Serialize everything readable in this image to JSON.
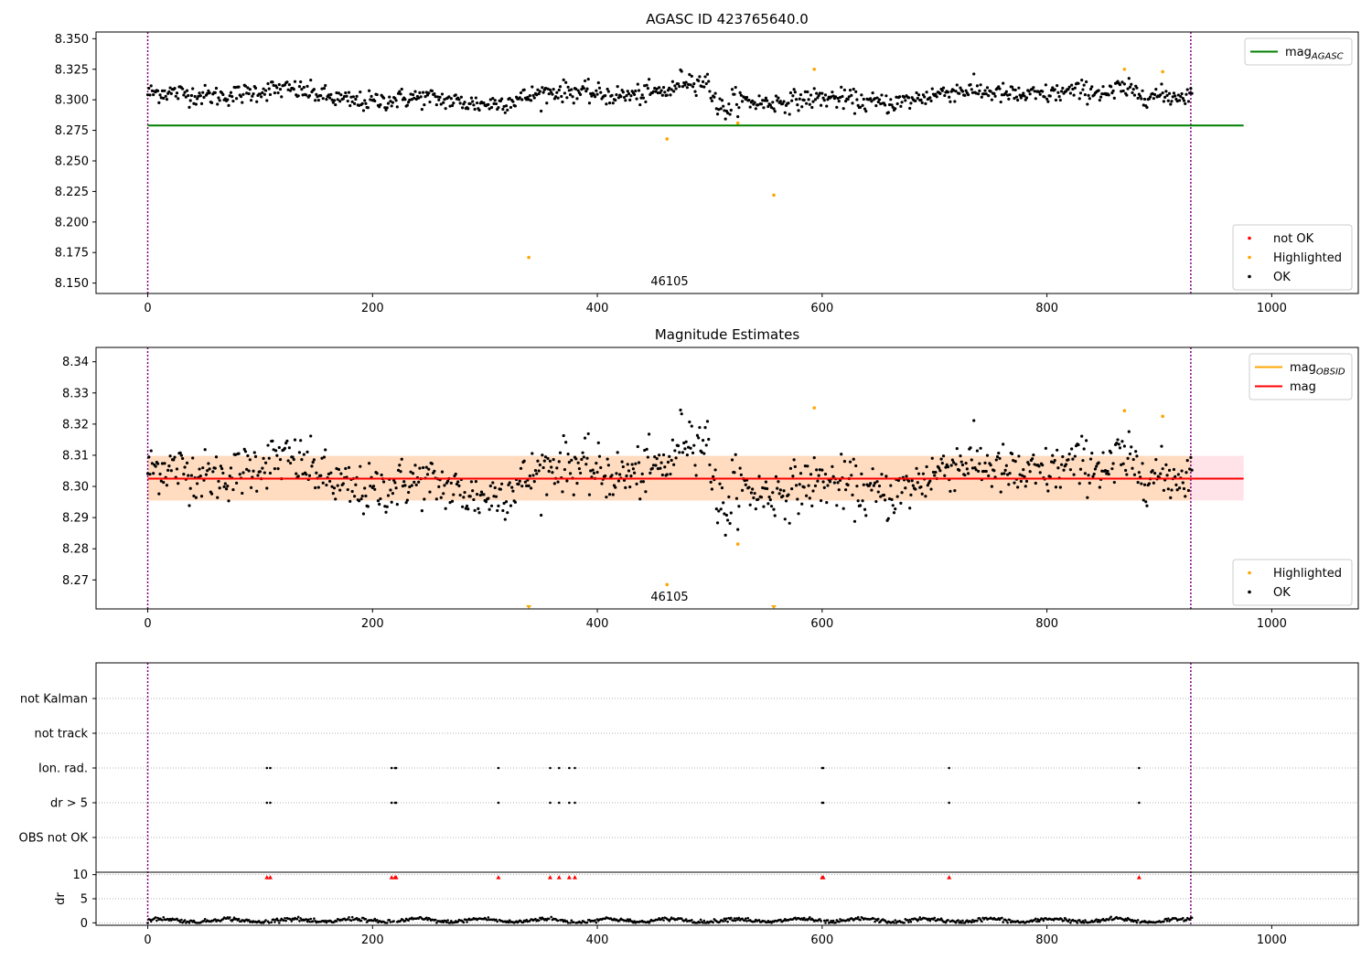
{
  "figure": {
    "background": "#ffffff"
  },
  "colors": {
    "ok": "#000000",
    "highlighted": "#ffa500",
    "not_ok": "#ff0000",
    "mag_agasc": "#008000",
    "mag_obsid": "#ffa500",
    "mag": "#ff0000",
    "band_outer": "#ffc0cb",
    "band_inner": "#ffdab9",
    "vline": "#800080"
  },
  "chart_data": [
    {
      "type": "scatter",
      "title": "AGASC ID 423765640.0",
      "xlim": [
        -46,
        1077
      ],
      "ylim": [
        8.1415,
        8.3555
      ],
      "xticks": [
        0,
        200,
        400,
        600,
        800,
        1000
      ],
      "yticks": [
        8.15,
        8.175,
        8.2,
        8.225,
        8.25,
        8.275,
        8.3,
        8.325,
        8.35
      ],
      "ytick_labels": [
        "8.150",
        "8.175",
        "8.200",
        "8.225",
        "8.250",
        "8.275",
        "8.300",
        "8.325",
        "8.350"
      ],
      "obsid_label": "46105",
      "obsid_boundaries": [
        0,
        928
      ],
      "hline": {
        "name": "mag_AGASC",
        "y": 8.279,
        "x": [
          0,
          975
        ]
      },
      "legend_upper": [
        {
          "label": "mag",
          "sub": "AGASC",
          "kind": "line",
          "color_key": "mag_agasc"
        }
      ],
      "legend_lower": [
        {
          "label": "not OK",
          "kind": "dot",
          "color_key": "not_ok"
        },
        {
          "label": "Highlighted",
          "kind": "dot",
          "color_key": "highlighted"
        },
        {
          "label": "OK",
          "kind": "dot",
          "color_key": "ok"
        }
      ],
      "legend_placement": {
        "line": "upper right",
        "points": "lower right"
      },
      "highlighted": [
        [
          339,
          8.171
        ],
        [
          462,
          8.268
        ],
        [
          525,
          8.281
        ],
        [
          557,
          8.222
        ],
        [
          593,
          8.325
        ],
        [
          869,
          8.325
        ],
        [
          903,
          8.323
        ]
      ],
      "ok_series": {
        "n": 930,
        "mean": 8.3025,
        "spread": 0.0075
      }
    },
    {
      "type": "scatter",
      "title": "Magnitude Estimates",
      "xlim": [
        -46,
        1077
      ],
      "ylim": [
        8.2607,
        8.3446
      ],
      "xticks": [
        0,
        200,
        400,
        600,
        800,
        1000
      ],
      "yticks": [
        8.27,
        8.28,
        8.29,
        8.3,
        8.31,
        8.32,
        8.33,
        8.34
      ],
      "ytick_labels": [
        "8.27",
        "8.28",
        "8.29",
        "8.30",
        "8.31",
        "8.32",
        "8.33",
        "8.34"
      ],
      "obsid_label": "46105",
      "obsid_boundaries": [
        0,
        928
      ],
      "mag": {
        "y": 8.3025,
        "band_low": 8.2955,
        "band_high": 8.3098,
        "x": [
          0,
          975
        ]
      },
      "mag_obsid": {
        "y": 8.3025,
        "x": [
          0,
          928
        ]
      },
      "legend_upper": [
        {
          "label": "mag",
          "sub": "OBSID",
          "kind": "line",
          "color_key": "mag_obsid"
        },
        {
          "label": "mag",
          "sub": "",
          "kind": "line",
          "color_key": "mag"
        }
      ],
      "legend_lower": [
        {
          "label": "Highlighted",
          "kind": "dot",
          "color_key": "highlighted"
        },
        {
          "label": "OK",
          "kind": "dot",
          "color_key": "ok"
        }
      ],
      "legend_placement": {
        "line": "upper right",
        "points": "lower right"
      },
      "highlighted": [
        [
          462,
          8.2685
        ],
        [
          525,
          8.2815
        ],
        [
          593,
          8.3252
        ],
        [
          869,
          8.3243
        ],
        [
          903,
          8.3225
        ]
      ],
      "off_scale_low": [
        [
          339,
          8.2607
        ],
        [
          557,
          8.2607
        ]
      ],
      "ok_series": {
        "n": 930,
        "mean": 8.3025,
        "spread": 0.0075
      }
    },
    {
      "type": "scatter",
      "title": "",
      "xlim": [
        -46,
        1077
      ],
      "xticks": [
        0,
        200,
        400,
        600,
        800,
        1000
      ],
      "flag_rows": [
        "not Kalman",
        "not track",
        "Ion. rad.",
        "dr > 5",
        "OBS not OK"
      ],
      "flag_points": {
        "Ion. rad.": [
          106,
          109,
          217,
          220,
          221,
          312,
          358,
          366,
          375,
          380,
          600,
          601,
          713,
          882
        ],
        "dr > 5": [
          106,
          109,
          217,
          220,
          221,
          312,
          358,
          366,
          375,
          380,
          600,
          601,
          713,
          882
        ],
        "not Kalman": [],
        "not track": [],
        "OBS not OK": []
      },
      "obsid_boundaries": [
        0,
        928
      ],
      "dr": {
        "ylabel": "dr",
        "ylim": [
          -0.5,
          10.5
        ],
        "yticks": [
          0,
          5,
          10
        ],
        "baseline_mean": 0.5,
        "clipped_value": 10,
        "clipped_x": [
          106,
          109,
          217,
          220,
          221,
          312,
          358,
          366,
          375,
          380,
          600,
          601,
          713,
          882
        ]
      }
    }
  ]
}
